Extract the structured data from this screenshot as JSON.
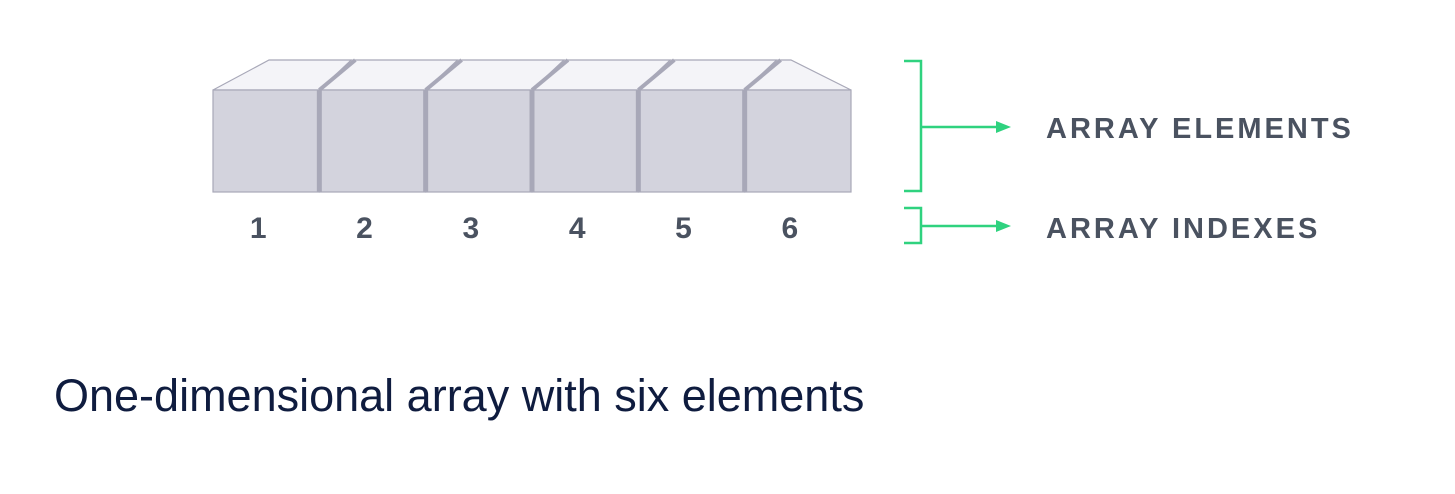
{
  "diagram": {
    "elements": [
      {
        "index": "1"
      },
      {
        "index": "2"
      },
      {
        "index": "3"
      },
      {
        "index": "4"
      },
      {
        "index": "5"
      },
      {
        "index": "6"
      }
    ],
    "legend": {
      "elements_label": "ARRAY ELEMENTS",
      "indexes_label": "ARRAY INDEXES"
    },
    "caption": "One-dimensional array with six elements"
  },
  "colors": {
    "box_front": "#d3d3dd",
    "box_top": "#f4f4f8",
    "box_edge": "#a8a8b8",
    "bracket_green": "#2fd27f",
    "label_text": "#4a5260",
    "caption_text": "#0f1c3f"
  }
}
